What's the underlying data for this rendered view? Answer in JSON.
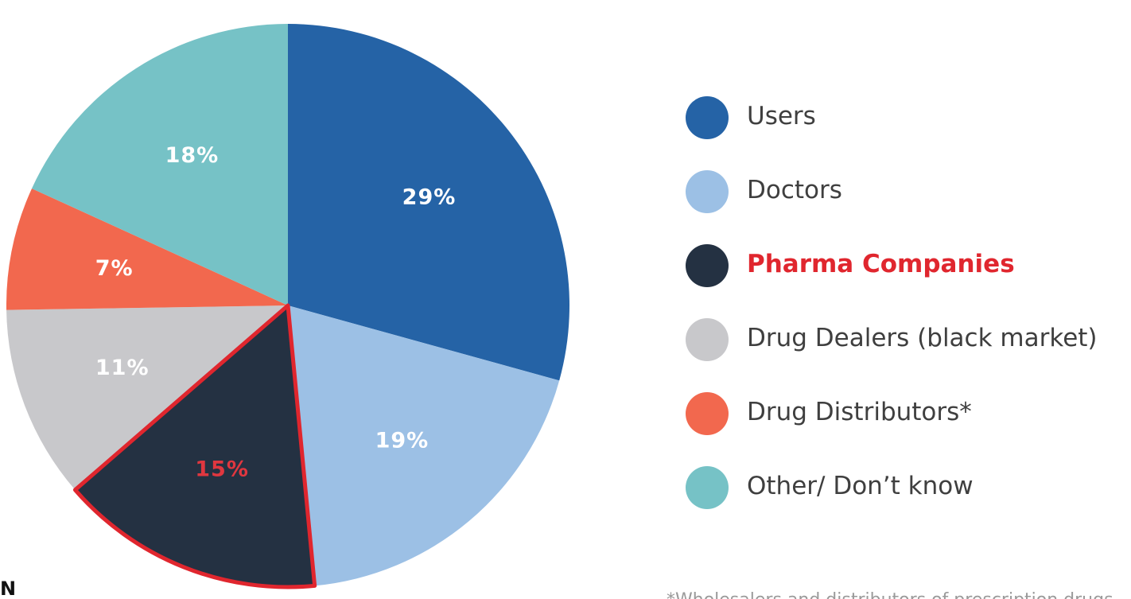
{
  "chart_data": {
    "type": "pie",
    "unit": "%",
    "slices": [
      {
        "name": "Users",
        "value": 29,
        "label": "29%",
        "color": "#2563a6",
        "label_color": "#ffffff",
        "highlight": false
      },
      {
        "name": "Doctors",
        "value": 19,
        "label": "19%",
        "color": "#9cc0e5",
        "label_color": "#ffffff",
        "highlight": false
      },
      {
        "name": "Pharma Companies",
        "value": 15,
        "label": "15%",
        "color": "#243142",
        "label_color": "#e0373f",
        "highlight": true
      },
      {
        "name": "Drug Dealers (black market)",
        "value": 11,
        "label": "11%",
        "color": "#c8c8cb",
        "label_color": "#ffffff",
        "highlight": false
      },
      {
        "name": "Drug Distributors*",
        "value": 7,
        "label": "7%",
        "color": "#f2684e",
        "label_color": "#ffffff",
        "highlight": false
      },
      {
        "name": "Other/ Don’t know",
        "value": 18,
        "label": "18%",
        "color": "#76c2c6",
        "label_color": "#ffffff",
        "highlight": false
      }
    ],
    "start": "12 o'clock",
    "direction": "clockwise",
    "highlight_color": "#e0262e",
    "legend_position": "right"
  },
  "legend": {
    "items": [
      {
        "label": "Users",
        "color": "#2563a6",
        "text_color": "#3f3f3f",
        "bold": false
      },
      {
        "label": "Doctors",
        "color": "#9cc0e5",
        "text_color": "#3f3f3f",
        "bold": false
      },
      {
        "label": "Pharma Companies",
        "color": "#243142",
        "text_color": "#e0262e",
        "bold": true
      },
      {
        "label": "Drug Dealers (black market)",
        "color": "#c8c8cb",
        "text_color": "#3f3f3f",
        "bold": false
      },
      {
        "label": "Drug Distributors*",
        "color": "#f2684e",
        "text_color": "#3f3f3f",
        "bold": false
      },
      {
        "label": "Other/ Don’t know",
        "color": "#76c2c6",
        "text_color": "#3f3f3f",
        "bold": false
      }
    ]
  },
  "corner": {
    "text": "N"
  },
  "footnote": {
    "text": "*Wholesalers and distributors of prescription drugs"
  }
}
